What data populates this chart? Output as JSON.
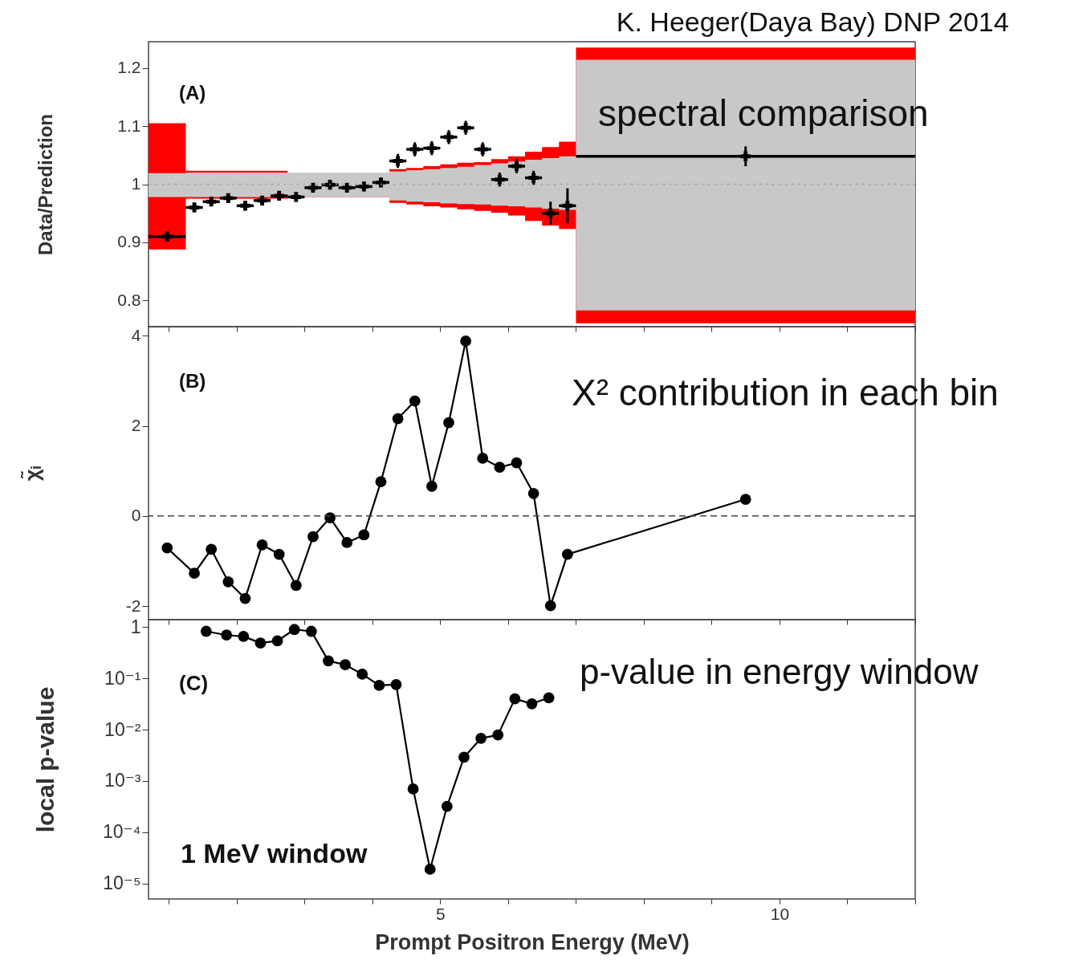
{
  "chart_data": [
    {
      "type": "scatter",
      "title": "K. Heeger(Daya Bay) DNP 2014",
      "ylabel": "Data/Prediction",
      "annotations": [
        "(A)",
        "spectral comparison"
      ],
      "xlim": [
        0.7,
        12
      ],
      "ylim": [
        0.755,
        1.245
      ],
      "xticks": [
        {
          "value": 1,
          "label": null
        },
        {
          "value": 2,
          "label": null
        },
        {
          "value": 3,
          "label": null
        },
        {
          "value": 4,
          "label": null
        },
        {
          "value": 5,
          "label": null
        },
        {
          "value": 6,
          "label": null
        },
        {
          "value": 7,
          "label": null
        },
        {
          "value": 8,
          "label": null
        },
        {
          "value": 9,
          "label": null
        },
        {
          "value": 10,
          "label": null
        },
        {
          "value": 11,
          "label": null
        },
        {
          "value": 12,
          "label": null
        }
      ],
      "yticks": [
        0.8,
        0.9,
        {
          "value": 1,
          "label": "1"
        },
        1.1,
        1.2
      ],
      "tick_labels": "y",
      "ref_lines": [
        {
          "axis": "y",
          "value": 1,
          "color": "#999999",
          "line_style": "dotted"
        }
      ],
      "series": [
        {
          "type": "step",
          "color": "#ff0000",
          "x": [
            0.7,
            1.25,
            1.5,
            1.75,
            2,
            2.25,
            2.5,
            2.75,
            3,
            3.25,
            3.5,
            3.75,
            4,
            4.25,
            4.5,
            4.75,
            5,
            5.25,
            5.5,
            5.75,
            6,
            6.25,
            6.5,
            6.75,
            7,
            12
          ],
          "values": [
            null,
            null,
            null,
            null,
            null,
            null,
            null,
            null,
            null,
            null,
            null,
            null,
            null,
            null,
            null,
            null,
            null,
            null,
            null,
            null,
            null,
            null,
            null,
            null,
            null,
            null
          ],
          "lower": [
            0.888,
            0.975,
            0.975,
            0.975,
            0.975,
            0.975,
            0.975,
            0.978,
            0.978,
            0.978,
            0.978,
            0.978,
            0.978,
            0.968,
            0.965,
            0.962,
            0.96,
            0.957,
            0.954,
            0.951,
            0.946,
            0.937,
            0.929,
            0.923,
            0.761,
            0.761
          ],
          "upper": [
            1.105,
            1.023,
            1.023,
            1.023,
            1.023,
            1.023,
            1.023,
            1.02,
            1.02,
            1.02,
            1.02,
            1.02,
            1.02,
            1.026,
            1.028,
            1.031,
            1.034,
            1.037,
            1.038,
            1.043,
            1.048,
            1.056,
            1.064,
            1.073,
            1.235,
            1.235
          ]
        },
        {
          "type": "step",
          "color": "#c8c8c8",
          "x": [
            0.7,
            1.25,
            1.5,
            1.75,
            2,
            2.25,
            2.5,
            2.75,
            3,
            3.25,
            3.5,
            3.75,
            4,
            4.25,
            4.5,
            4.75,
            5,
            5.25,
            5.5,
            5.75,
            6,
            6.25,
            6.5,
            6.75,
            7,
            12
          ],
          "values": [
            null,
            null,
            null,
            null,
            null,
            null,
            null,
            null,
            null,
            null,
            null,
            null,
            null,
            null,
            null,
            null,
            null,
            null,
            null,
            null,
            null,
            null,
            null,
            null,
            null,
            null
          ],
          "lower": [
            0.978,
            0.978,
            0.978,
            0.978,
            0.978,
            0.978,
            0.978,
            0.978,
            0.978,
            0.978,
            0.978,
            0.978,
            0.978,
            0.972,
            0.97,
            0.969,
            0.967,
            0.966,
            0.965,
            0.963,
            0.962,
            0.96,
            0.958,
            0.956,
            0.783,
            0.783
          ],
          "upper": [
            1.019,
            1.02,
            1.02,
            1.02,
            1.02,
            1.02,
            1.02,
            1.02,
            1.02,
            1.02,
            1.02,
            1.02,
            1.02,
            1.022,
            1.024,
            1.026,
            1.028,
            1.03,
            1.033,
            1.036,
            1.039,
            1.042,
            1.045,
            1.048,
            1.214,
            1.214
          ]
        },
        {
          "color": "#000000",
          "marker": "cross",
          "x": [
            0.975,
            1.375,
            1.625,
            1.875,
            2.125,
            2.375,
            2.625,
            2.875,
            3.125,
            3.375,
            3.625,
            3.875,
            4.125,
            4.375,
            4.625,
            4.875,
            5.125,
            5.375,
            5.625,
            5.875,
            6.125,
            6.375,
            6.625,
            6.875,
            9.5
          ],
          "values": [
            0.91,
            0.96,
            0.97,
            0.976,
            0.963,
            0.972,
            0.98,
            0.978,
            0.994,
            0.999,
            0.994,
            0.996,
            1.003,
            1.04,
            1.06,
            1.062,
            1.081,
            1.097,
            1.06,
            1.008,
            1.031,
            1.011,
            0.95,
            0.963,
            1.048
          ],
          "errors": [
            0.005,
            0.008,
            0.008,
            0.008,
            0.008,
            0.008,
            0.008,
            0.008,
            0.008,
            0.008,
            0.008,
            0.008,
            0.008,
            0.012,
            0.012,
            0.012,
            0.012,
            0.012,
            0.012,
            0.012,
            0.012,
            0.012,
            0.02,
            0.03,
            0.017
          ],
          "xerrors": [
            [
              0.7,
              1.25
            ],
            0.125,
            0.125,
            0.125,
            0.125,
            0.125,
            0.125,
            0.125,
            0.125,
            0.125,
            0.125,
            0.125,
            0.125,
            0.125,
            0.125,
            0.125,
            0.125,
            0.125,
            0.125,
            0.125,
            0.125,
            0.125,
            0.125,
            0.125,
            [
              7,
              12
            ]
          ]
        }
      ]
    },
    {
      "type": "line",
      "ylabel": "χ̃ᵢ",
      "annotations": [
        "(B)",
        "X² contribution in each bin"
      ],
      "xlim": [
        0.7,
        12
      ],
      "ylim": [
        -2.3,
        4.2
      ],
      "xticks": [
        {
          "value": 1,
          "label": null
        },
        {
          "value": 2,
          "label": null
        },
        {
          "value": 3,
          "label": null
        },
        {
          "value": 4,
          "label": null
        },
        {
          "value": 5,
          "label": null
        },
        {
          "value": 6,
          "label": null
        },
        {
          "value": 7,
          "label": null
        },
        {
          "value": 8,
          "label": null
        },
        {
          "value": 9,
          "label": null
        },
        {
          "value": 10,
          "label": null
        },
        {
          "value": 11,
          "label": null
        },
        {
          "value": 12,
          "label": null
        }
      ],
      "yticks": [
        -2,
        0,
        2,
        4
      ],
      "tick_labels": "y",
      "ref_lines": [
        {
          "axis": "y",
          "value": 0,
          "color": "#444444",
          "line_style": "dashed"
        }
      ],
      "series": [
        {
          "color": "#000000",
          "marker": "circle",
          "x": [
            0.975,
            1.375,
            1.625,
            1.875,
            2.125,
            2.375,
            2.625,
            2.875,
            3.125,
            3.375,
            3.625,
            3.875,
            4.125,
            4.375,
            4.625,
            4.875,
            5.125,
            5.375,
            5.625,
            5.875,
            6.125,
            6.375,
            6.625,
            6.875,
            9.5
          ],
          "values": [
            -0.71,
            -1.27,
            -0.74,
            -1.46,
            -1.83,
            -0.64,
            -0.85,
            -1.54,
            -0.46,
            -0.04,
            -0.59,
            -0.42,
            0.76,
            2.16,
            2.55,
            0.66,
            2.07,
            3.88,
            1.28,
            1.08,
            1.18,
            0.5,
            -1.99,
            -0.85,
            0.37
          ]
        }
      ]
    },
    {
      "type": "line",
      "xlabel": "Prompt Positron Energy (MeV)",
      "ylabel": "local p-value",
      "annotations": [
        "(C)",
        "p-value in energy window",
        "1 MeV window"
      ],
      "log": true,
      "xlim": [
        0.7,
        12
      ],
      "ylim": [
        5e-06,
        1.4
      ],
      "xticks": [
        {
          "value": 1,
          "label": null
        },
        {
          "value": 2,
          "label": null
        },
        {
          "value": 3,
          "label": null
        },
        {
          "value": 4,
          "label": null
        },
        5,
        {
          "value": 6,
          "label": null
        },
        {
          "value": 7,
          "label": null
        },
        {
          "value": 8,
          "label": null
        },
        {
          "value": 9,
          "label": null
        },
        10,
        {
          "value": 11,
          "label": null
        },
        {
          "value": 12,
          "label": null
        }
      ],
      "yticks": [
        1,
        {
          "value": 0.1,
          "label": "10⁻¹"
        },
        {
          "value": 0.01,
          "label": "10⁻²"
        },
        {
          "value": 0.001,
          "label": "10⁻³"
        },
        {
          "value": 0.0001,
          "label": "10⁻⁴"
        },
        {
          "value": 1e-05,
          "label": "10⁻⁵"
        }
      ],
      "series": [
        {
          "color": "#000000",
          "marker": "circle",
          "x": [
            1.55,
            1.85,
            2.1,
            2.35,
            2.6,
            2.85,
            3.1,
            3.35,
            3.6,
            3.85,
            4.1,
            4.35,
            4.6,
            4.85,
            5.1,
            5.35,
            5.6,
            5.85,
            6.1,
            6.35,
            6.6
          ],
          "values": [
            0.83,
            0.7,
            0.66,
            0.49,
            0.54,
            0.9,
            0.83,
            0.22,
            0.185,
            0.121,
            0.073,
            0.076,
            0.0007,
            1.9e-05,
            0.00032,
            0.0029,
            0.0068,
            0.0079,
            0.04,
            0.032,
            0.042
          ]
        }
      ]
    }
  ]
}
